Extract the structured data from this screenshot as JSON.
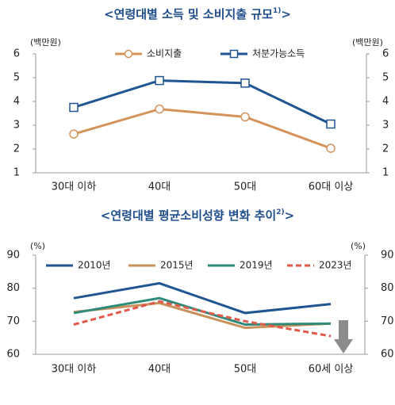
{
  "chart_data": [
    {
      "type": "line",
      "title": "<연령대별 소득 및 소비지출 규모",
      "title_note": "1)",
      "title_end": ">",
      "ylabel": "(백만원)",
      "y2label": "(백만원)",
      "categories": [
        "30대 이하",
        "40대",
        "50대",
        "60대 이상"
      ],
      "series": [
        {
          "name": "소비지출",
          "color": "#d4935a",
          "marker": "circle",
          "values": [
            2.63,
            3.68,
            3.35,
            2.03
          ]
        },
        {
          "name": "처분가능소득",
          "color": "#1f5591",
          "marker": "square",
          "values": [
            3.75,
            4.88,
            4.77,
            3.05
          ]
        }
      ],
      "ylim": [
        1,
        6
      ],
      "yticks": [
        1,
        2,
        3,
        4,
        5,
        6
      ],
      "y2lim": [
        1,
        6
      ],
      "y2ticks": [
        1,
        2,
        3,
        4,
        5,
        6
      ]
    },
    {
      "type": "line",
      "title": "<연령대별 평균소비성향 변화 추이",
      "title_note": "2)",
      "title_end": ">",
      "ylabel": "(%)",
      "y2label": "(%)",
      "categories": [
        "30대 이하",
        "40대",
        "50대",
        "60세 이상"
      ],
      "series": [
        {
          "name": "2010년",
          "color": "#1f5591",
          "dash": false,
          "values": [
            77,
            81.5,
            72.5,
            75.2
          ]
        },
        {
          "name": "2015년",
          "color": "#c8915a",
          "dash": false,
          "values": [
            72.8,
            75.5,
            68,
            69.3
          ]
        },
        {
          "name": "2019년",
          "color": "#2e8b7a",
          "dash": false,
          "values": [
            72.5,
            77,
            69,
            69.3
          ]
        },
        {
          "name": "2023년",
          "color": "#e05a4a",
          "dash": true,
          "values": [
            69,
            76,
            70,
            65.5
          ]
        }
      ],
      "ylim": [
        60,
        90
      ],
      "yticks": [
        60,
        70,
        80,
        90
      ],
      "y2lim": [
        60,
        90
      ],
      "y2ticks": [
        60,
        70,
        80,
        90
      ]
    }
  ]
}
